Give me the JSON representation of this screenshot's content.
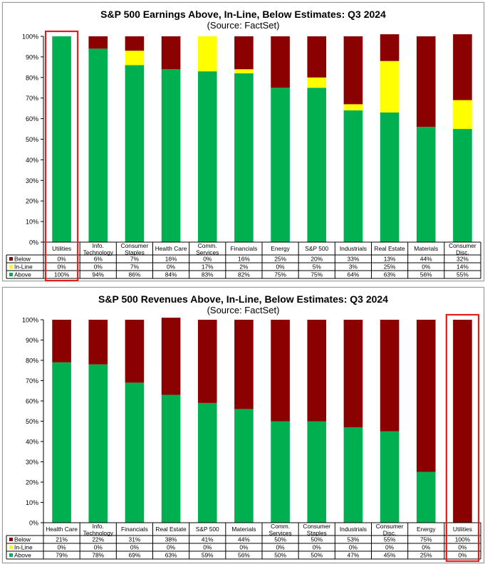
{
  "chart_data": [
    {
      "type": "bar",
      "stacked": true,
      "title": "S&P 500 Earnings Above, In-Line, Below Estimates: Q3 2024",
      "subtitle": "(Source: FactSet)",
      "ylim": [
        0,
        100
      ],
      "yticks": [
        "0%",
        "10%",
        "20%",
        "30%",
        "40%",
        "50%",
        "60%",
        "70%",
        "80%",
        "90%",
        "100%"
      ],
      "grid": false,
      "categories": [
        [
          "Utilities"
        ],
        [
          "Info.",
          "Technology"
        ],
        [
          "Consumer",
          "Staples"
        ],
        [
          "Health Care"
        ],
        [
          "Comm.",
          "Services"
        ],
        [
          "Financials"
        ],
        [
          "Energy"
        ],
        [
          "S&P 500"
        ],
        [
          "Industrials"
        ],
        [
          "Real Estate"
        ],
        [
          "Materials"
        ],
        [
          "Consumer",
          "Disc."
        ]
      ],
      "series": [
        {
          "name": "Below",
          "color": "#8b0000",
          "values": [
            0,
            6,
            7,
            16,
            0,
            16,
            25,
            20,
            33,
            13,
            44,
            32
          ],
          "labels": [
            "0%",
            "6%",
            "7%",
            "16%",
            "0%",
            "16%",
            "25%",
            "20%",
            "33%",
            "13%",
            "44%",
            "32%"
          ]
        },
        {
          "name": "In-Line",
          "color": "#ffff00",
          "values": [
            0,
            0,
            7,
            0,
            17,
            2,
            0,
            5,
            3,
            25,
            0,
            14
          ],
          "labels": [
            "0%",
            "0%",
            "7%",
            "0%",
            "17%",
            "2%",
            "0%",
            "5%",
            "3%",
            "25%",
            "0%",
            "14%"
          ]
        },
        {
          "name": "Above",
          "color": "#00b050",
          "values": [
            100,
            94,
            86,
            84,
            83,
            82,
            75,
            75,
            64,
            63,
            56,
            55
          ],
          "labels": [
            "100%",
            "94%",
            "86%",
            "84%",
            "83%",
            "82%",
            "75%",
            "75%",
            "64%",
            "63%",
            "56%",
            "55%"
          ]
        }
      ],
      "highlight_category_index": 0,
      "highlight_color": "#e0201b"
    },
    {
      "type": "bar",
      "stacked": true,
      "title": "S&P 500 Revenues Above, In-Line, Below Estimates: Q3 2024",
      "subtitle": "(Source: FactSet)",
      "ylim": [
        0,
        100
      ],
      "yticks": [
        "0%",
        "10%",
        "20%",
        "30%",
        "40%",
        "50%",
        "60%",
        "70%",
        "80%",
        "90%",
        "100%"
      ],
      "grid": false,
      "categories": [
        [
          "Health Care"
        ],
        [
          "Info.",
          "Technology"
        ],
        [
          "Financials"
        ],
        [
          "Real Estate"
        ],
        [
          "S&P 500"
        ],
        [
          "Materials"
        ],
        [
          "Comm.",
          "Services"
        ],
        [
          "Consumer",
          "Staples"
        ],
        [
          "Industrials"
        ],
        [
          "Consumer",
          "Disc."
        ],
        [
          "Energy"
        ],
        [
          "Utilities"
        ]
      ],
      "series": [
        {
          "name": "Below",
          "color": "#8b0000",
          "values": [
            21,
            22,
            31,
            38,
            41,
            44,
            50,
            50,
            53,
            55,
            75,
            100
          ],
          "labels": [
            "21%",
            "22%",
            "31%",
            "38%",
            "41%",
            "44%",
            "50%",
            "50%",
            "53%",
            "55%",
            "75%",
            "100%"
          ]
        },
        {
          "name": "In-Line",
          "color": "#ffff00",
          "values": [
            0,
            0,
            0,
            0,
            0,
            0,
            0,
            0,
            0,
            0,
            0,
            0
          ],
          "labels": [
            "0%",
            "0%",
            "0%",
            "0%",
            "0%",
            "0%",
            "0%",
            "0%",
            "0%",
            "0%",
            "0%",
            "0%"
          ]
        },
        {
          "name": "Above",
          "color": "#00b050",
          "values": [
            79,
            78,
            69,
            63,
            59,
            56,
            50,
            50,
            47,
            45,
            25,
            0
          ],
          "labels": [
            "79%",
            "78%",
            "69%",
            "63%",
            "59%",
            "56%",
            "50%",
            "50%",
            "47%",
            "45%",
            "25%",
            "0%"
          ]
        }
      ],
      "highlight_category_index": 11,
      "highlight_color": "#e0201b"
    }
  ]
}
